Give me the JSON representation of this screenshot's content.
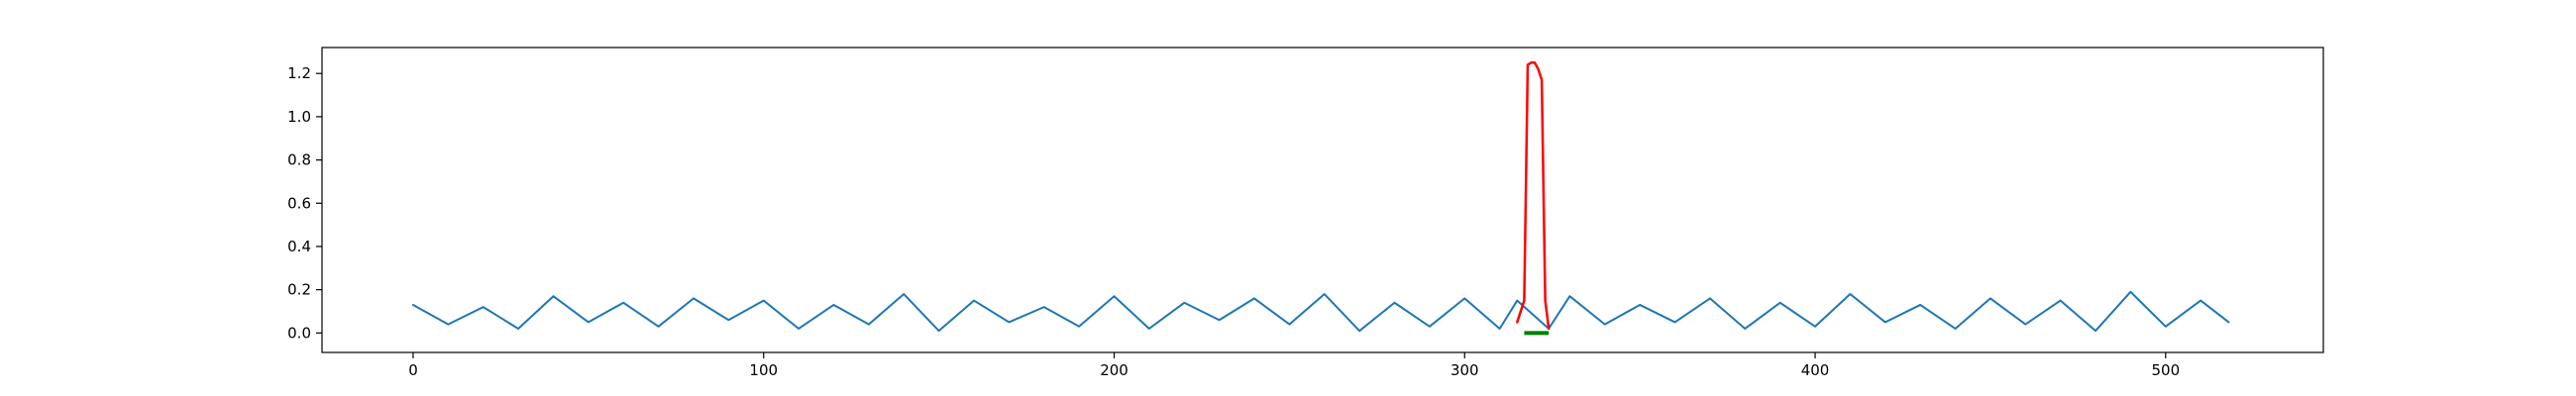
{
  "chart_data": {
    "type": "line",
    "title": "",
    "xlabel": "",
    "ylabel": "",
    "xlim": [
      -26,
      545
    ],
    "ylim": [
      -0.09,
      1.32
    ],
    "grid": false,
    "legend": "none",
    "xticks": [
      0,
      100,
      200,
      300,
      400,
      500
    ],
    "xtick_labels": [
      "0",
      "100",
      "200",
      "300",
      "400",
      "500"
    ],
    "yticks": [
      0.0,
      0.2,
      0.4,
      0.6,
      0.8,
      1.0,
      1.2
    ],
    "ytick_labels": [
      "0.0",
      "0.2",
      "0.4",
      "0.6",
      "0.8",
      "1.0",
      "1.2"
    ],
    "series": [
      {
        "color": "#1f77b4",
        "x": [
          0,
          10,
          20,
          30,
          40,
          50,
          60,
          70,
          80,
          90,
          100,
          110,
          120,
          130,
          140,
          150,
          160,
          170,
          180,
          190,
          200,
          210,
          220,
          230,
          240,
          250,
          260,
          270,
          280,
          290,
          300,
          310,
          315,
          324,
          330,
          340,
          350,
          360,
          370,
          380,
          390,
          400,
          410,
          420,
          430,
          440,
          450,
          460,
          470,
          480,
          490,
          500,
          510,
          518
        ],
        "y": [
          0.13,
          0.04,
          0.12,
          0.02,
          0.17,
          0.05,
          0.14,
          0.03,
          0.16,
          0.06,
          0.15,
          0.02,
          0.13,
          0.04,
          0.18,
          0.01,
          0.15,
          0.05,
          0.12,
          0.03,
          0.17,
          0.02,
          0.14,
          0.06,
          0.16,
          0.04,
          0.18,
          0.01,
          0.14,
          0.03,
          0.16,
          0.02,
          0.15,
          0.02,
          0.17,
          0.04,
          0.13,
          0.05,
          0.16,
          0.02,
          0.14,
          0.03,
          0.18,
          0.05,
          0.13,
          0.02,
          0.16,
          0.04,
          0.15,
          0.01,
          0.19,
          0.03,
          0.15,
          0.05
        ]
      },
      {
        "color": "#ff0000",
        "x": [
          315,
          317,
          318,
          319,
          320,
          321,
          322,
          323,
          324
        ],
        "y": [
          0.05,
          0.15,
          1.24,
          1.25,
          1.25,
          1.22,
          1.17,
          0.15,
          0.02
        ]
      },
      {
        "color": "#008000",
        "x": [
          317,
          324
        ],
        "y": [
          0.0,
          0.0
        ]
      }
    ]
  }
}
